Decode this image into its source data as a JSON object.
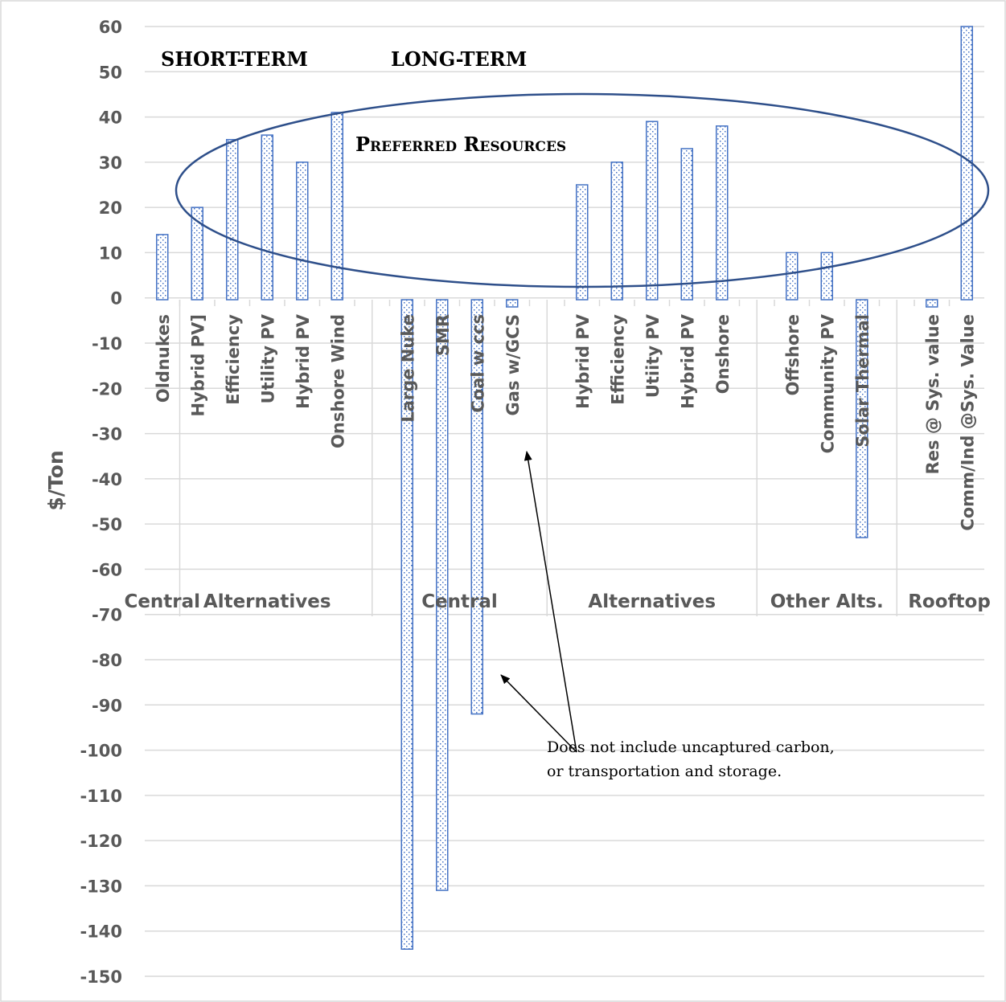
{
  "chart_data": {
    "type": "bar",
    "ylabel": "$/Ton",
    "ylim": [
      -150,
      60
    ],
    "ytick_step": 10,
    "grid": true,
    "bar_color": "#4472c4",
    "categories": [
      "Oldnukes",
      "Hybrid PV]",
      "Efficiency",
      "Utility PV",
      "Hybrid PV",
      "Onshore Wind",
      "Large Nuke",
      "SMR",
      "Coal w ccs",
      "Gas w/GCS",
      "Hybrid PV",
      "Efficiency",
      "Utiity PV",
      "Hybrid PV",
      "Onshore",
      "Offshore",
      "Community PV",
      "Solar Thermal",
      "Res @ Sys. value",
      "Comm/Ind @Sys. Value"
    ],
    "values": [
      14,
      20,
      35,
      36,
      30,
      41,
      -144,
      -131,
      -92,
      -2,
      25,
      30,
      39,
      33,
      38,
      10,
      10,
      -53,
      -2,
      60
    ],
    "groups": [
      {
        "label": "Central",
        "start": 0,
        "end": 0
      },
      {
        "label": "Alternatives",
        "start": 1,
        "end": 5
      },
      {
        "label": "Central",
        "start": 6,
        "end": 9
      },
      {
        "label": "Alternatives",
        "start": 10,
        "end": 14
      },
      {
        "label": "Other Alts.",
        "start": 15,
        "end": 17
      },
      {
        "label": "Rooftop",
        "start": 18,
        "end": 19
      }
    ],
    "annotations": {
      "short_term": "SHORT-TERM",
      "long_term": "LONG-TERM",
      "preferred_resources": "Preferred Resources",
      "note_line1": "Does not include uncaptured carbon,",
      "note_line2": "or transportation and storage."
    }
  }
}
